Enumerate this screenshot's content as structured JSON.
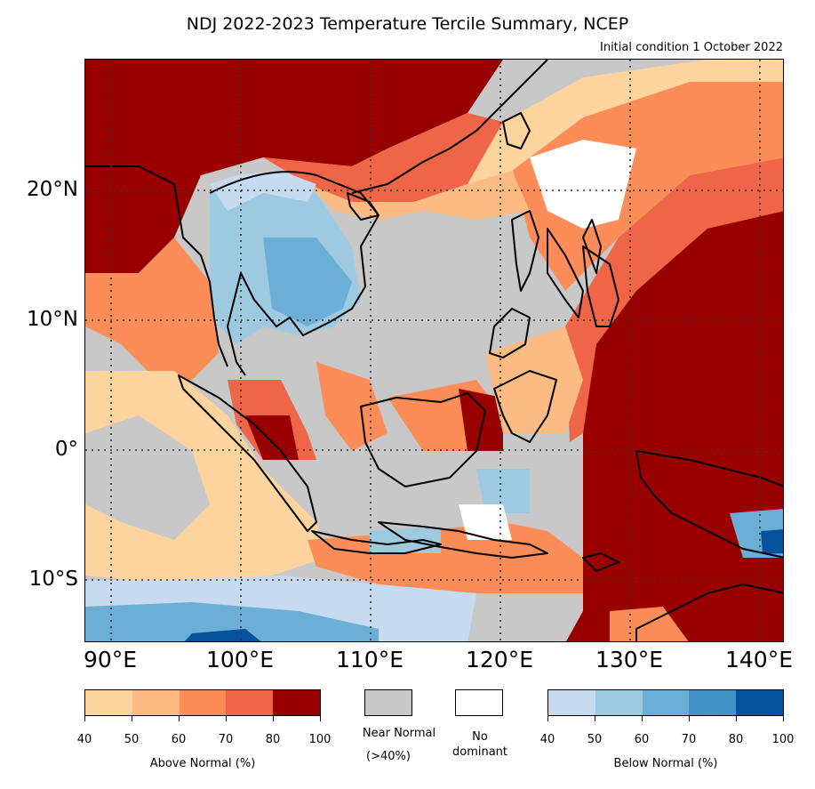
{
  "title": "NDJ 2022-2023 Temperature Tercile Summary, NCEP",
  "subtitle": "Initial condition 1 October 2022",
  "lat_labels": [
    "20°N",
    "10°N",
    "0°",
    "10°S"
  ],
  "lon_labels": [
    "90°E",
    "100°E",
    "110°E",
    "120°E",
    "130°E",
    "140°E"
  ],
  "legend": {
    "above_label": "Above Normal (%)",
    "below_label": "Below Normal (%)",
    "near_normal_label": "Near Normal",
    "near_normal_sub": "(>40%)",
    "no_dominant_label": "No",
    "no_dominant_sub": "dominant",
    "ticks": [
      "40",
      "50",
      "60",
      "70",
      "80",
      "100"
    ],
    "above_colors": [
      "#fdd49e",
      "#fdbb84",
      "#fc8d59",
      "#ef6548",
      "#990000"
    ],
    "below_colors": [
      "#c6dbef",
      "#9ecae1",
      "#6baed6",
      "#4292c6",
      "#08519c"
    ],
    "near_normal_color": "#c8c8c8",
    "no_dominant_color": "#ffffff"
  }
}
